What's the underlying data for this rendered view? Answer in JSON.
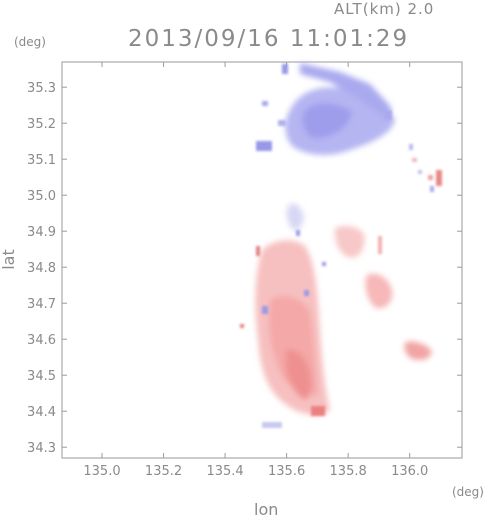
{
  "header": {
    "altitude_label": "ALT(km) 2.0",
    "timestamp": "2013/09/16 11:01:29"
  },
  "axes": {
    "y_unit": "(deg)",
    "x_unit": "(deg)",
    "y_label": "lat",
    "x_label": "lon",
    "x_ticks": [
      "135.0",
      "135.2",
      "135.4",
      "135.6",
      "135.8",
      "136.0"
    ],
    "y_ticks": [
      "35.3",
      "35.2",
      "35.1",
      "35.0",
      "34.9",
      "34.8",
      "34.7",
      "34.6",
      "34.5",
      "34.4",
      "34.3"
    ]
  },
  "map": {
    "x_range": [
      134.87,
      136.17
    ],
    "y_range": [
      34.27,
      35.37
    ],
    "colors": {
      "approaching": "#9a9af0",
      "receding": "#f4a0a0",
      "frame": "#9a9a9a"
    }
  }
}
